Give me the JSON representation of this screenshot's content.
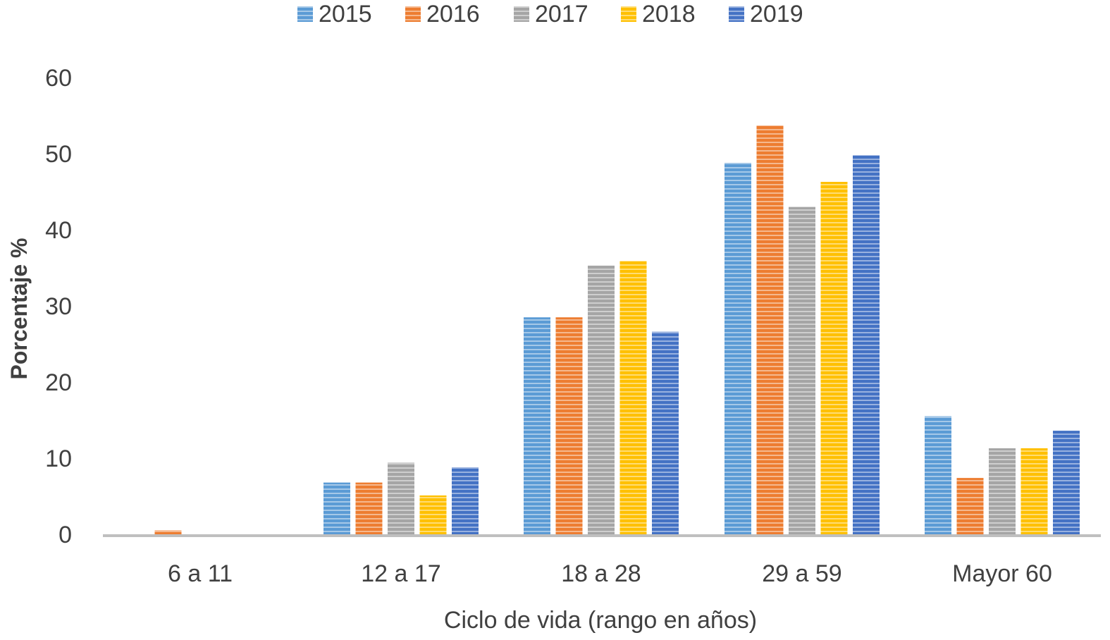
{
  "chart_data": {
    "type": "bar",
    "title": "",
    "xlabel": "Ciclo de vida (rango en años)",
    "ylabel": "Porcentaje %",
    "ylim": [
      0,
      60
    ],
    "yticks": [
      0,
      10,
      20,
      30,
      40,
      50,
      60
    ],
    "grid": false,
    "legend_position": "top",
    "bar_pattern": "horizontal-stripes",
    "categories": [
      "6 a 11",
      "12 a 17",
      "18 a 28",
      "29 a 59",
      "Mayor 60"
    ],
    "series": [
      {
        "name": "2015",
        "color": "#5b9bd5",
        "values": [
          0,
          6.8,
          28.5,
          48.8,
          15.5
        ]
      },
      {
        "name": "2016",
        "color": "#ed7d31",
        "values": [
          0.5,
          6.8,
          28.5,
          53.7,
          7.4
        ]
      },
      {
        "name": "2017",
        "color": "#a5a5a5",
        "values": [
          0,
          9.4,
          35.3,
          43.0,
          11.3
        ]
      },
      {
        "name": "2018",
        "color": "#ffc000",
        "values": [
          0,
          5.1,
          35.9,
          46.3,
          11.3
        ]
      },
      {
        "name": "2019",
        "color": "#4472c4",
        "values": [
          0,
          8.8,
          26.6,
          49.8,
          13.6
        ]
      }
    ]
  }
}
